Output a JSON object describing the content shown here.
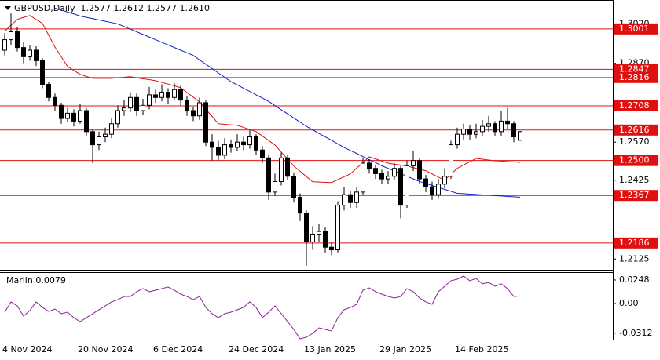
{
  "chart_data": [
    {
      "type": "candlestick",
      "title": "GBPUSD,Daily  1.2577 1.2612 1.2577 1.2610",
      "categories": [
        "4 Nov 2024",
        null,
        null,
        null,
        null,
        null,
        null,
        null,
        null,
        null,
        null,
        null,
        "20 Nov 2024",
        null,
        null,
        null,
        null,
        null,
        null,
        null,
        null,
        null,
        null,
        null,
        "6 Dec 2024",
        null,
        null,
        null,
        null,
        null,
        null,
        null,
        null,
        null,
        null,
        null,
        "24 Dec 2024",
        null,
        null,
        null,
        null,
        null,
        null,
        null,
        null,
        null,
        null,
        null,
        "13 Jan 2025",
        null,
        null,
        null,
        null,
        null,
        null,
        null,
        null,
        null,
        null,
        null,
        "29 Jan 2025",
        null,
        null,
        null,
        null,
        null,
        null,
        null,
        null,
        null,
        null,
        null,
        "14 Feb 2025",
        null,
        null,
        null,
        null,
        null,
        null,
        null,
        null,
        null,
        null
      ],
      "open": [
        1.292,
        1.296,
        1.299,
        1.293,
        1.2895,
        1.292,
        1.288,
        1.279,
        1.274,
        1.271,
        1.266,
        1.268,
        1.265,
        1.269,
        1.261,
        1.256,
        1.259,
        1.26,
        1.264,
        1.269,
        1.27,
        1.274,
        1.269,
        1.271,
        1.275,
        1.274,
        1.276,
        1.274,
        1.277,
        1.273,
        1.269,
        1.267,
        1.272,
        1.257,
        1.255,
        1.252,
        1.256,
        1.255,
        1.257,
        1.256,
        1.259,
        1.254,
        1.251,
        1.238,
        1.242,
        1.251,
        1.244,
        1.236,
        1.23,
        1.219,
        1.222,
        1.223,
        1.217,
        1.216,
        1.233,
        1.237,
        1.234,
        1.238,
        1.249,
        1.247,
        1.245,
        1.243,
        1.244,
        1.247,
        1.233,
        1.248,
        1.25,
        1.243,
        1.24,
        1.237,
        1.241,
        1.244,
        1.256,
        1.26,
        1.262,
        1.26,
        1.261,
        1.263,
        1.264,
        1.261,
        1.265,
        1.264,
        1.2577
      ],
      "high": [
        1.2985,
        1.306,
        1.301,
        1.295,
        1.294,
        1.2935,
        1.289,
        1.28,
        1.2755,
        1.272,
        1.27,
        1.2695,
        1.2715,
        1.27,
        1.262,
        1.261,
        1.2625,
        1.266,
        1.271,
        1.273,
        1.276,
        1.2755,
        1.2735,
        1.278,
        1.277,
        1.279,
        1.2775,
        1.2795,
        1.2785,
        1.2745,
        1.2705,
        1.274,
        1.273,
        1.26,
        1.2575,
        1.2585,
        1.258,
        1.26,
        1.259,
        1.2615,
        1.26,
        1.2555,
        1.252,
        1.245,
        1.253,
        1.252,
        1.2455,
        1.2375,
        1.231,
        1.225,
        1.226,
        1.2245,
        1.219,
        1.2345,
        1.24,
        1.2385,
        1.24,
        1.251,
        1.2505,
        1.2485,
        1.2465,
        1.246,
        1.249,
        1.248,
        1.25,
        1.2535,
        1.251,
        1.2445,
        1.242,
        1.243,
        1.247,
        1.2575,
        1.2625,
        1.264,
        1.2635,
        1.264,
        1.2655,
        1.267,
        1.265,
        1.269,
        1.27,
        1.265,
        1.2612
      ],
      "low": [
        1.29,
        1.294,
        1.2915,
        1.287,
        1.288,
        1.286,
        1.2775,
        1.2725,
        1.269,
        1.264,
        1.2645,
        1.263,
        1.264,
        1.2595,
        1.249,
        1.254,
        1.257,
        1.2585,
        1.2625,
        1.267,
        1.2685,
        1.267,
        1.2675,
        1.2695,
        1.272,
        1.2725,
        1.2715,
        1.273,
        1.271,
        1.267,
        1.265,
        1.2655,
        1.2555,
        1.25,
        1.25,
        1.2505,
        1.253,
        1.2535,
        1.254,
        1.2545,
        1.252,
        1.249,
        1.235,
        1.2365,
        1.2405,
        1.2425,
        1.234,
        1.227,
        1.21,
        1.216,
        1.219,
        1.215,
        1.214,
        1.215,
        1.231,
        1.232,
        1.232,
        1.237,
        1.245,
        1.243,
        1.241,
        1.241,
        1.2425,
        1.228,
        1.232,
        1.246,
        1.241,
        1.238,
        1.235,
        1.2355,
        1.2395,
        1.243,
        1.2545,
        1.258,
        1.258,
        1.2585,
        1.2595,
        1.261,
        1.2595,
        1.2595,
        1.262,
        1.257,
        1.2577
      ],
      "close": [
        1.296,
        1.299,
        1.293,
        1.2895,
        1.292,
        1.288,
        1.279,
        1.274,
        1.271,
        1.266,
        1.268,
        1.265,
        1.269,
        1.261,
        1.256,
        1.259,
        1.26,
        1.264,
        1.269,
        1.27,
        1.274,
        1.269,
        1.271,
        1.275,
        1.274,
        1.276,
        1.274,
        1.277,
        1.273,
        1.269,
        1.267,
        1.272,
        1.257,
        1.255,
        1.252,
        1.256,
        1.255,
        1.257,
        1.256,
        1.259,
        1.254,
        1.251,
        1.238,
        1.242,
        1.251,
        1.244,
        1.236,
        1.23,
        1.219,
        1.222,
        1.223,
        1.217,
        1.216,
        1.233,
        1.237,
        1.234,
        1.238,
        1.249,
        1.247,
        1.245,
        1.243,
        1.244,
        1.247,
        1.233,
        1.248,
        1.25,
        1.243,
        1.24,
        1.237,
        1.241,
        1.244,
        1.256,
        1.26,
        1.262,
        1.26,
        1.261,
        1.263,
        1.264,
        1.261,
        1.265,
        1.264,
        1.259,
        1.261
      ],
      "overlays": [
        {
          "color": "#e01010",
          "values": [
            1.2992,
            1.3015,
            1.3037,
            1.3045,
            1.3052,
            1.3037,
            1.3022,
            1.2977,
            1.2932,
            1.2895,
            1.2858,
            1.2843,
            1.2828,
            1.282,
            1.2813,
            1.2813,
            1.2813,
            1.2813,
            1.2815,
            1.2817,
            1.2819,
            1.2815,
            1.2811,
            1.2808,
            1.2804,
            1.2797,
            1.2791,
            1.2784,
            1.2777,
            1.2759,
            1.2741,
            1.2723,
            1.2695,
            1.2668,
            1.264,
            1.2638,
            1.2636,
            1.2634,
            1.2626,
            1.2618,
            1.261,
            1.2593,
            1.2576,
            1.2559,
            1.2532,
            1.2506,
            1.2479,
            1.2459,
            1.2439,
            1.2419,
            1.2418,
            1.2417,
            1.2416,
            1.2427,
            1.2438,
            1.2449,
            1.2471,
            1.2492,
            1.2514,
            1.2506,
            1.2498,
            1.249,
            1.2486,
            1.2483,
            1.2479,
            1.2473,
            1.2467,
            1.2461,
            1.2449,
            1.2437,
            1.2425,
            1.2448,
            1.247,
            1.2483,
            1.2495,
            1.2508,
            1.2505,
            1.2502,
            1.2499,
            1.2498,
            1.2496,
            1.2495,
            1.2493
          ]
        },
        {
          "color": "#1020d0",
          "values": [
            null,
            null,
            null,
            null,
            null,
            null,
            null,
            null,
            1.308,
            1.3073,
            1.3065,
            1.3058,
            1.305,
            1.3045,
            1.304,
            1.3035,
            1.303,
            1.3025,
            1.302,
            1.301,
            1.3,
            1.299,
            1.298,
            1.297,
            1.296,
            1.295,
            1.294,
            1.293,
            1.292,
            1.291,
            1.29,
            1.2883,
            1.2867,
            1.285,
            1.2833,
            1.2817,
            1.28,
            1.2788,
            1.2775,
            1.2763,
            1.275,
            1.2738,
            1.2725,
            1.2709,
            1.2693,
            1.2678,
            1.2662,
            1.2646,
            1.263,
            1.2617,
            1.2603,
            1.259,
            1.2577,
            1.2563,
            1.255,
            1.2538,
            1.2527,
            1.2515,
            1.2503,
            1.2492,
            1.248,
            1.247,
            1.246,
            1.245,
            1.244,
            1.243,
            1.242,
            1.2413,
            1.2405,
            1.2398,
            1.239,
            1.2383,
            1.2375,
            1.2374,
            1.2372,
            1.2371,
            1.2369,
            1.2368,
            1.2366,
            1.2365,
            1.2363,
            1.2362,
            1.236
          ]
        }
      ],
      "levels": {
        "color": "#e01010",
        "values": [
          1.3001,
          1.2847,
          1.2816,
          1.2708,
          1.2616,
          {
            "value": 1.25,
            "label": "1.2500"
          },
          1.2367,
          1.2186
        ]
      },
      "ylim": [
        1.209,
        1.3111
      ],
      "yticks": [
        {
          "value": 1.302,
          "label": "1.3020"
        },
        {
          "value": 1.287,
          "label": "1.2870"
        },
        {
          "value": 1.257,
          "label": "1.2570"
        },
        1.2425,
        1.2125
      ]
    },
    {
      "type": "line",
      "title": "Marlin 0.0079",
      "color": "#8e1f9a",
      "values": [
        -0.0091,
        0.0017,
        -0.0025,
        -0.0132,
        -0.0074,
        0.0017,
        -0.0041,
        -0.0083,
        -0.0058,
        -0.0107,
        -0.0091,
        -0.0149,
        -0.019,
        -0.0149,
        -0.0107,
        -0.0066,
        -0.0025,
        0.0017,
        0.0041,
        0.0074,
        0.0074,
        0.0124,
        0.0157,
        0.0124,
        0.014,
        0.0157,
        0.0174,
        0.014,
        0.0099,
        0.0074,
        0.0041,
        0.0074,
        -0.0041,
        -0.0107,
        -0.0149,
        -0.0107,
        -0.0091,
        -0.0066,
        -0.0041,
        0.0017,
        -0.0041,
        -0.0149,
        -0.0091,
        -0.0025,
        -0.0107,
        -0.019,
        -0.0273,
        -0.0372,
        -0.0355,
        -0.0314,
        -0.0256,
        -0.0273,
        -0.0289,
        -0.0149,
        -0.0066,
        -0.0041,
        -0.0008,
        0.014,
        0.0165,
        0.0124,
        0.0099,
        0.0074,
        0.0058,
        0.0074,
        0.0157,
        0.0124,
        0.0058,
        0.0017,
        -0.0008,
        0.0124,
        0.0182,
        0.024,
        0.0256,
        0.0289,
        0.024,
        0.0264,
        0.0207,
        0.0223,
        0.0182,
        0.0207,
        0.0157,
        0.0074,
        0.0079
      ],
      "ylim": [
        -0.038,
        0.0322
      ],
      "yticks": [
        0.0248,
        {
          "value": 0,
          "label": "0.00"
        },
        -0.0312
      ]
    }
  ]
}
